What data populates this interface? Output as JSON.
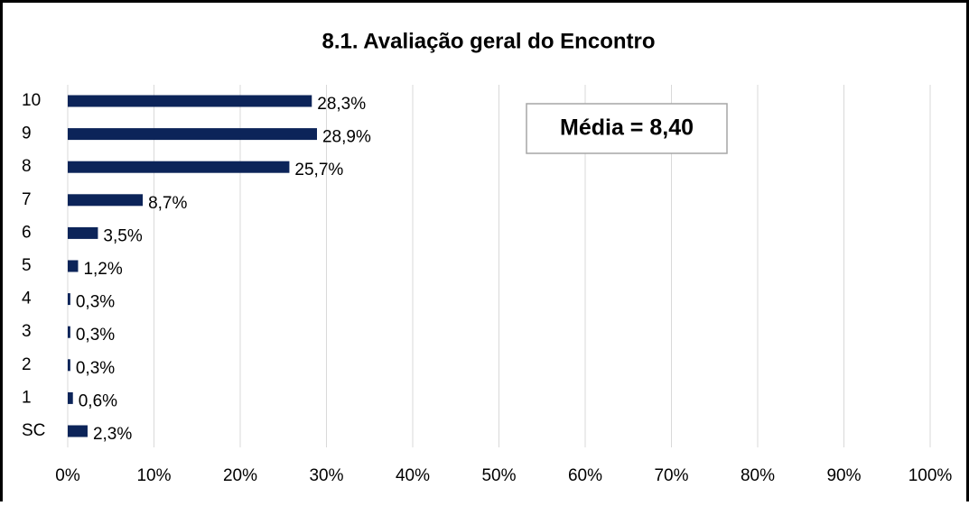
{
  "chart_data": {
    "type": "bar",
    "orientation": "horizontal",
    "title": "8.1. Avaliação geral do Encontro",
    "annotation": "Média = 8,40",
    "categories": [
      "10",
      "9",
      "8",
      "7",
      "6",
      "5",
      "4",
      "3",
      "2",
      "1",
      "SC"
    ],
    "values": [
      28.3,
      28.9,
      25.7,
      8.7,
      3.5,
      1.2,
      0.3,
      0.3,
      0.3,
      0.6,
      2.3
    ],
    "value_labels": [
      "28,3%",
      "28,9%",
      "25,7%",
      "8,7%",
      "3,5%",
      "1,2%",
      "0,3%",
      "0,3%",
      "0,3%",
      "0,6%",
      "2,3%"
    ],
    "color": "#0c2459",
    "xlim": [
      0,
      100
    ],
    "xticks": [
      {
        "value": 0,
        "label": "0%"
      },
      {
        "value": 10,
        "label": "10%"
      },
      {
        "value": 20,
        "label": "20%"
      },
      {
        "value": 30,
        "label": "30%"
      },
      {
        "value": 40,
        "label": "40%"
      },
      {
        "value": 50,
        "label": "50%"
      },
      {
        "value": 60,
        "label": "60%"
      },
      {
        "value": 70,
        "label": "70%"
      },
      {
        "value": 80,
        "label": "80%"
      },
      {
        "value": 90,
        "label": "90%"
      },
      {
        "value": 100,
        "label": "100%"
      }
    ],
    "grid": true
  }
}
